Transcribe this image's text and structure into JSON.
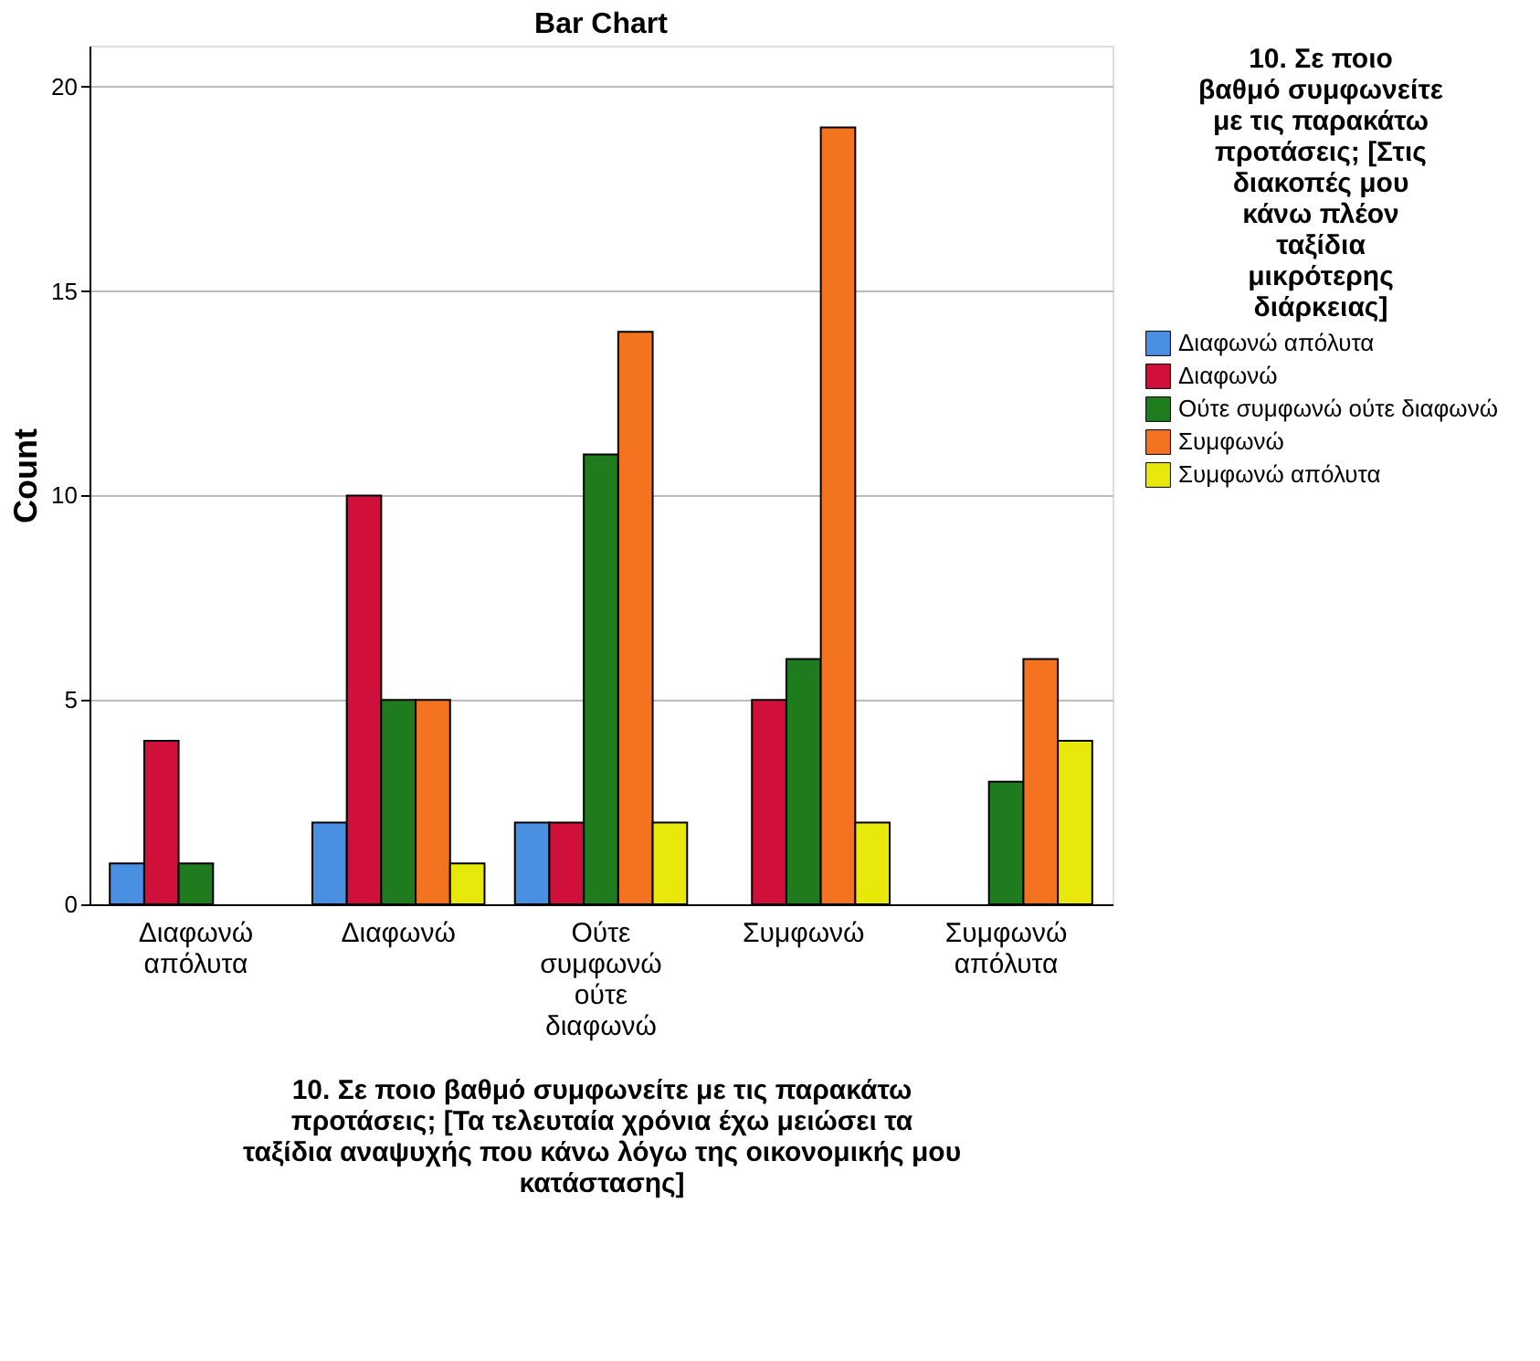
{
  "chart_data": {
    "type": "bar",
    "title": "Bar Chart",
    "xlabel": "10. Σε ποιο βαθμό συμφωνείτε με τις παρακάτω προτάσεις;  [Τα τελευταία χρόνια έχω μειώσει τα ταξίδια αναψυχής που κάνω λόγω της οικονομικής μου κατάστασης]",
    "ylabel": "Count",
    "legend_title": "10. Σε ποιο βαθμό συμφωνείτε με τις παρακάτω προτάσεις;  [Στις διακοπές μου κάνω πλέον ταξίδια μικρότερης διάρκειας]",
    "categories": [
      "Διαφωνώ απόλυτα",
      "Διαφωνώ",
      "Ούτε συμφωνώ ούτε διαφωνώ",
      "Συμφωνώ",
      "Συμφωνώ απόλυτα"
    ],
    "series": [
      {
        "name": "Διαφωνώ απόλυτα",
        "color": "#4a90e2",
        "values": [
          1,
          2,
          2,
          null,
          null
        ]
      },
      {
        "name": "Διαφωνώ",
        "color": "#d0103a",
        "values": [
          4,
          10,
          2,
          5,
          null
        ]
      },
      {
        "name": "Ούτε συμφωνώ ούτε διαφωνώ",
        "color": "#1e7b1e",
        "values": [
          1,
          5,
          11,
          6,
          3
        ]
      },
      {
        "name": "Συμφωνώ",
        "color": "#f47321",
        "values": [
          null,
          5,
          14,
          19,
          6
        ]
      },
      {
        "name": "Συμφωνώ απόλυτα",
        "color": "#e8e80a",
        "values": [
          null,
          1,
          2,
          2,
          4
        ]
      }
    ],
    "ylim": [
      0,
      21
    ],
    "yticks": [
      0,
      5,
      10,
      15,
      20
    ],
    "grid": "y",
    "legend": "right"
  }
}
